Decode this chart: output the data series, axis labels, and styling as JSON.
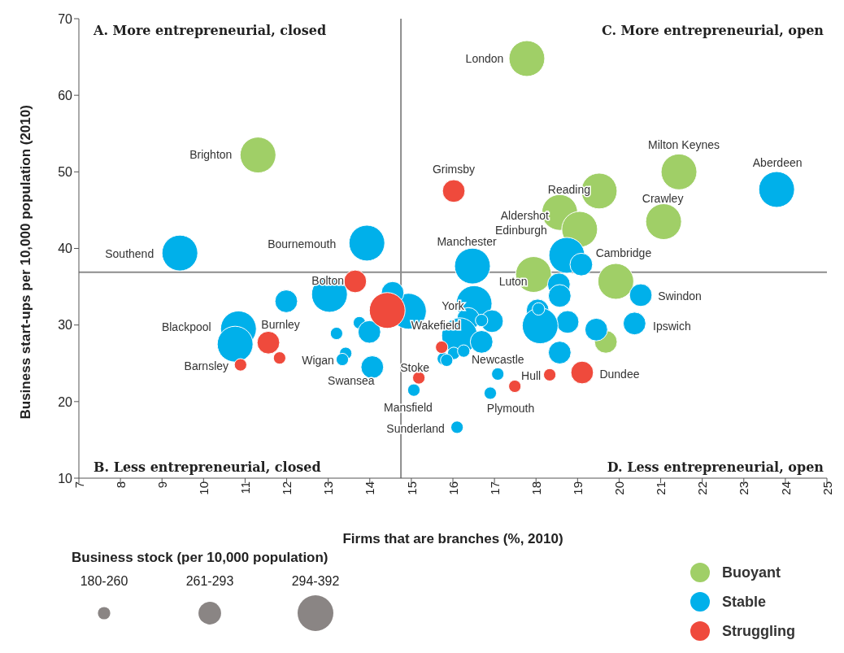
{
  "chart_data": {
    "type": "bubble",
    "xlabel": "Firms that are branches (%, 2010)",
    "ylabel": "Business start-ups per 10,000 population (2010)",
    "xlim": [
      7,
      25
    ],
    "xticks": [
      7,
      8,
      9,
      10,
      11,
      12,
      13,
      14,
      15,
      16,
      17,
      18,
      19,
      20,
      21,
      22,
      23,
      24,
      25
    ],
    "ylim": [
      10,
      70
    ],
    "yticks": [
      10,
      20,
      30,
      40,
      50,
      60,
      70
    ],
    "grid": false,
    "legend": "bottom right",
    "legend_title": "Business stock (per 10,000 population)",
    "size_legend": [
      {
        "value": 0.12,
        "label": "180-260"
      },
      {
        "value": 0.4,
        "label": "261-293"
      },
      {
        "value": 1,
        "label": "294-392"
      }
    ],
    "ref_lines": [
      {
        "axis": "x",
        "value": 14.75,
        "label": null,
        "color": "#8c8c8c"
      },
      {
        "axis": "y",
        "value": 36.9,
        "label": null,
        "color": "#8c8c8c"
      }
    ],
    "series": [
      {
        "name": "Buoyant",
        "color": "#a0cf67",
        "x": [
          17.78,
          11.31,
          21.44,
          19.52,
          18.57,
          19.05,
          21.07,
          17.94,
          19.92,
          19.68
        ],
        "values": [
          64.8,
          52.2,
          50.0,
          47.5,
          44.7,
          42.5,
          43.5,
          36.6,
          35.7,
          27.8
        ],
        "sizes": [
          1,
          1,
          1,
          1,
          1,
          1,
          1,
          1,
          1,
          0.4
        ]
      },
      {
        "name": "Stable",
        "color": "#00b0ea",
        "x": [
          23.79,
          9.43,
          13.93,
          16.47,
          18.74,
          19.09,
          20.52,
          20.37,
          19.45,
          18.76,
          18.55,
          18.57,
          18.04,
          18.1,
          18.06,
          18.57,
          16.51,
          16.94,
          16.37,
          16.69,
          16.16,
          16.69,
          16.02,
          16.26,
          15.77,
          15.85,
          17.08,
          16.9,
          16.1,
          15.06,
          14.93,
          14.55,
          13.03,
          11.99,
          10.84,
          10.76,
          13.2,
          13.42,
          13.34,
          13.75,
          13.99,
          14.06
        ],
        "values": [
          47.7,
          39.4,
          40.7,
          37.7,
          39.1,
          37.9,
          33.9,
          30.2,
          29.4,
          30.4,
          35.3,
          33.8,
          31.9,
          29.9,
          32.1,
          26.4,
          32.8,
          30.5,
          30.8,
          30.6,
          28.6,
          27.8,
          26.3,
          26.6,
          25.6,
          25.4,
          23.6,
          21.1,
          16.65,
          21.5,
          31.8,
          34.2,
          34.0,
          33.1,
          29.5,
          27.5,
          28.9,
          26.3,
          25.5,
          30.3,
          29.1,
          24.5
        ],
        "sizes": [
          1,
          1,
          1,
          1,
          1,
          0.4,
          0.4,
          0.4,
          0.4,
          0.4,
          0.4,
          0.4,
          0.4,
          1,
          0.12,
          0.4,
          1,
          0.4,
          0.4,
          0.12,
          1,
          0.4,
          0.12,
          0.12,
          0.12,
          0.12,
          0.12,
          0.12,
          0.12,
          0.12,
          1,
          0.4,
          1,
          0.4,
          1,
          1,
          0.12,
          0.12,
          0.12,
          0.12,
          0.4,
          0.4
        ]
      },
      {
        "name": "Struggling",
        "color": "#ef4a3c",
        "x": [
          16.02,
          14.42,
          13.65,
          11.56,
          11.83,
          10.89,
          15.18,
          15.73,
          17.49,
          18.33,
          19.11
        ],
        "values": [
          47.5,
          31.9,
          35.7,
          27.7,
          25.7,
          24.8,
          23.1,
          27.1,
          22.0,
          23.5,
          23.8
        ],
        "sizes": [
          0.4,
          1,
          0.4,
          0.4,
          0.12,
          0.12,
          0.12,
          0.12,
          0.12,
          0.12,
          0.4
        ]
      }
    ],
    "annotations": [
      "A. More entrepreneurial, closed",
      "C. More entrepreneurial, open",
      "B. Less entrepreneurial, closed",
      "D. Less entrepreneurial, open",
      {
        "text": "London",
        "x": 17.78,
        "y": 64.8
      },
      {
        "text": "Brighton",
        "x": 11.31,
        "y": 52.2
      },
      {
        "text": "Milton Keynes",
        "x": 21.44,
        "y": 50.0
      },
      {
        "text": "Aberdeen",
        "x": 23.79,
        "y": 47.7
      },
      {
        "text": "Grimsby",
        "x": 16.02,
        "y": 47.5
      },
      {
        "text": "Reading",
        "x": 19.52,
        "y": 47.5
      },
      {
        "text": "Crawley",
        "x": 21.07,
        "y": 43.5
      },
      {
        "text": "Aldershot",
        "x": 18.57,
        "y": 44.7
      },
      {
        "text": "Edinburgh",
        "x": 19.05,
        "y": 42.5
      },
      {
        "text": "Southend",
        "x": 9.43,
        "y": 39.4
      },
      {
        "text": "Bournemouth",
        "x": 13.93,
        "y": 40.7
      },
      {
        "text": "Manchester",
        "x": 16.47,
        "y": 37.7
      },
      {
        "text": "Cambridge",
        "x": 19.09,
        "y": 37.9
      },
      {
        "text": "Bolton",
        "x": 13.03,
        "y": 34.0
      },
      {
        "text": "Luton",
        "x": 17.94,
        "y": 36.6
      },
      {
        "text": "Swindon",
        "x": 20.52,
        "y": 33.9
      },
      {
        "text": "York",
        "x": 16.51,
        "y": 32.8
      },
      {
        "text": "Blackpool",
        "x": 10.84,
        "y": 29.5
      },
      {
        "text": "Burnley",
        "x": 11.56,
        "y": 27.7
      },
      {
        "text": "Wakefield",
        "x": 16.16,
        "y": 28.6
      },
      {
        "text": "Ipswich",
        "x": 20.37,
        "y": 30.2
      },
      {
        "text": "Wigan",
        "x": 13.34,
        "y": 25.5
      },
      {
        "text": "Newcastle",
        "x": 16.26,
        "y": 26.6
      },
      {
        "text": "Barnsley",
        "x": 10.89,
        "y": 24.8
      },
      {
        "text": "Stoke",
        "x": 15.18,
        "y": 23.1
      },
      {
        "text": "Hull",
        "x": 18.33,
        "y": 23.5
      },
      {
        "text": "Dundee",
        "x": 19.11,
        "y": 23.8
      },
      {
        "text": "Swansea",
        "x": 14.06,
        "y": 24.5
      },
      {
        "text": "Mansfield",
        "x": 15.06,
        "y": 21.5
      },
      {
        "text": "Plymouth",
        "x": 16.9,
        "y": 21.1
      },
      {
        "text": "Sunderland",
        "x": 16.1,
        "y": 16.65
      }
    ]
  }
}
